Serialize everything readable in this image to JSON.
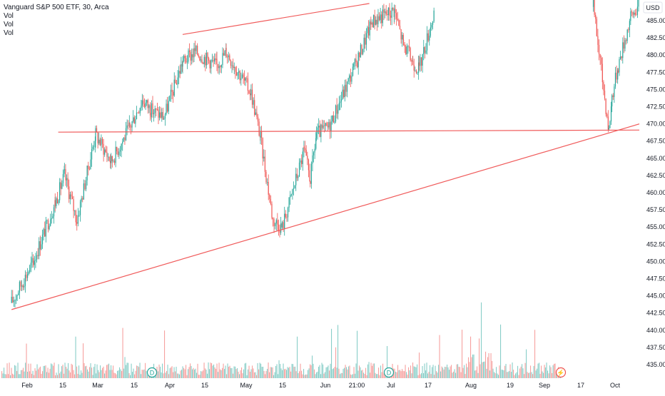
{
  "legend": {
    "title": "Vanguard S&P 500 ETF, 30, Arca",
    "lines": [
      "Vol",
      "Vol",
      "Vol"
    ]
  },
  "axis": {
    "currency": "USD",
    "y_ticks": [
      "485.00",
      "482.50",
      "480.00",
      "477.50",
      "475.00",
      "472.50",
      "470.00",
      "467.50",
      "465.00",
      "462.50",
      "460.00",
      "457.50",
      "455.00",
      "452.50",
      "450.00",
      "447.50",
      "445.00",
      "442.50",
      "440.00",
      "437.50",
      "435.00"
    ],
    "x_ticks": [
      "Feb",
      "15",
      "Mar",
      "15",
      "Apr",
      "15",
      "May",
      "15",
      "Jun",
      "21:00",
      "Jul",
      "17",
      "Aug",
      "19",
      "Sep",
      "17",
      "Oct"
    ]
  },
  "colors": {
    "up": "#26a69a",
    "down": "#ef5350",
    "trendline": "#f05a5a",
    "background": "#ffffff",
    "axis_text": "#131722"
  },
  "markers": [
    {
      "label": "D",
      "icon": "dividend-icon"
    },
    {
      "label": "D",
      "icon": "dividend-icon"
    },
    {
      "label": "⚡",
      "icon": "lightning-icon"
    }
  ],
  "chart_data": {
    "type": "candlestick",
    "symbol": "Vanguard S&P 500 ETF",
    "interval": "30",
    "exchange": "Arca",
    "ylim": [
      434,
      487.5
    ],
    "price_path": [
      {
        "date": "2024-01-26",
        "close": 444.0
      },
      {
        "date": "2024-02-02",
        "close": 450.0
      },
      {
        "date": "2024-02-09",
        "close": 458.5
      },
      {
        "date": "2024-02-12",
        "close": 462.5
      },
      {
        "date": "2024-02-16",
        "close": 456.0
      },
      {
        "date": "2024-02-22",
        "close": 468.5
      },
      {
        "date": "2024-02-27",
        "close": 464.5
      },
      {
        "date": "2024-03-04",
        "close": 469.5
      },
      {
        "date": "2024-03-08",
        "close": 473.5
      },
      {
        "date": "2024-03-11",
        "close": 472.0
      },
      {
        "date": "2024-03-15",
        "close": 471.0
      },
      {
        "date": "2024-03-21",
        "close": 479.0
      },
      {
        "date": "2024-03-25",
        "close": 480.5
      },
      {
        "date": "2024-04-01",
        "close": 478.5
      },
      {
        "date": "2024-04-04",
        "close": 480.5
      },
      {
        "date": "2024-04-12",
        "close": 474.5
      },
      {
        "date": "2024-04-15",
        "close": 468.0
      },
      {
        "date": "2024-04-19",
        "close": 456.0
      },
      {
        "date": "2024-04-22",
        "close": 455.0
      },
      {
        "date": "2024-04-29",
        "close": 466.0
      },
      {
        "date": "2024-05-01",
        "close": 462.0
      },
      {
        "date": "2024-05-03",
        "close": 468.5
      },
      {
        "date": "2024-05-07",
        "close": 469.5
      },
      {
        "date": "2024-05-15",
        "close": 478.0
      },
      {
        "date": "2024-05-21",
        "close": 485.0
      },
      {
        "date": "2024-05-28",
        "close": 486.5
      },
      {
        "date": "2024-05-31",
        "close": 481.5
      },
      {
        "date": "2024-06-03",
        "close": 479.0
      },
      {
        "date": "2024-06-05",
        "close": 478.0
      },
      {
        "date": "2024-06-10",
        "close": 486.5
      },
      {
        "date": "2024-07-31",
        "close": 487.0
      },
      {
        "date": "2024-08-05",
        "close": 469.0
      },
      {
        "date": "2024-08-06",
        "close": 474.0
      },
      {
        "date": "2024-08-08",
        "close": 478.5
      },
      {
        "date": "2024-08-12",
        "close": 485.5
      },
      {
        "date": "2024-08-15",
        "close": 487.5
      }
    ],
    "trendlines": [
      {
        "name": "support",
        "from": {
          "date": "2024-01-26",
          "price": 443.0
        },
        "to": {
          "date": "2024-09-25",
          "price": 475.5
        }
      },
      {
        "name": "horizontal",
        "from": {
          "date": "2024-02-10",
          "price": 468.8
        },
        "to": {
          "date": "2024-10-16",
          "price": 469.2
        }
      },
      {
        "name": "resistance",
        "from": {
          "date": "2024-03-21",
          "price": 483.0
        },
        "to": {
          "date": "2024-05-20",
          "price": 487.5
        }
      }
    ],
    "volume": {
      "shown": true,
      "note": "volume histogram along bottom"
    }
  }
}
